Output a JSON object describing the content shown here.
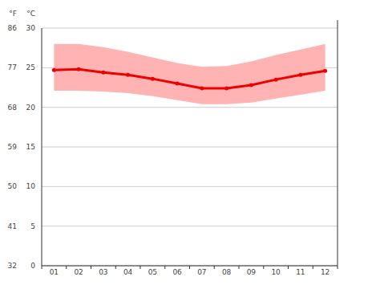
{
  "chart_data": {
    "type": "line",
    "ylabel": "°C",
    "y2label": "°F",
    "categories": [
      "01",
      "02",
      "03",
      "04",
      "05",
      "06",
      "07",
      "08",
      "09",
      "10",
      "11",
      "12"
    ],
    "series": [
      {
        "type": "range",
        "color": "#ffb3b3",
        "values": [
          28.0,
          28.0,
          27.6,
          27.0,
          26.3,
          25.6,
          25.1,
          25.2,
          25.8,
          26.6,
          27.3,
          28.0
        ],
        "lower": [
          22.1,
          22.1,
          22.0,
          21.8,
          21.4,
          20.9,
          20.4,
          20.4,
          20.6,
          21.1,
          21.6,
          22.1
        ]
      },
      {
        "type": "line",
        "color": "#ee0000",
        "marker": "circle",
        "values": [
          24.7,
          24.8,
          24.4,
          24.1,
          23.6,
          23.0,
          22.4,
          22.4,
          22.8,
          23.5,
          24.1,
          24.6
        ]
      }
    ],
    "ylim": [
      0,
      30
    ],
    "yticks": [
      0,
      5,
      10,
      15,
      20,
      25,
      30
    ],
    "y2lim": [
      32,
      86
    ],
    "y2ticks": [
      32,
      41,
      50,
      59,
      68,
      77,
      86
    ],
    "grid": true
  }
}
